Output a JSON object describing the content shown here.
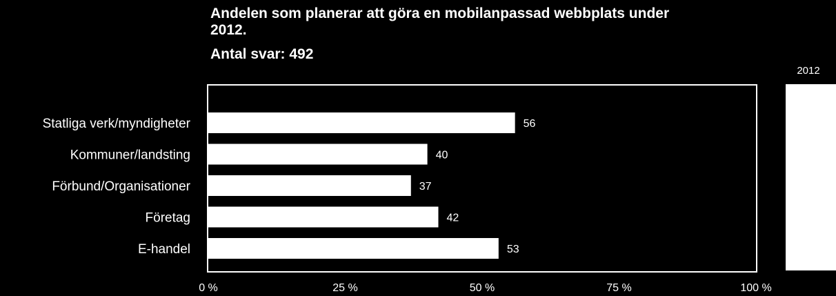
{
  "chart_data": {
    "type": "bar",
    "orientation": "horizontal",
    "title": "Andelen som planerar att göra en mobilanpassad webbplats under 2012.",
    "subtitle": "Antal svar: 492",
    "categories": [
      "Statliga verk/myndigheter",
      "Kommuner/landsting",
      "Förbund/Organisationer",
      "Företag",
      "E-handel"
    ],
    "series": [
      {
        "name": "2012",
        "values": [
          56,
          40,
          37,
          42,
          53
        ]
      }
    ],
    "x_ticks": [
      "0 %",
      "25 %",
      "50 %",
      "75 %",
      "100 %"
    ],
    "xlim": [
      0,
      100
    ],
    "grid": false,
    "legend_position": "right",
    "colors": {
      "background": "#000000",
      "bar": "#ffffff",
      "text": "#ffffff"
    }
  }
}
